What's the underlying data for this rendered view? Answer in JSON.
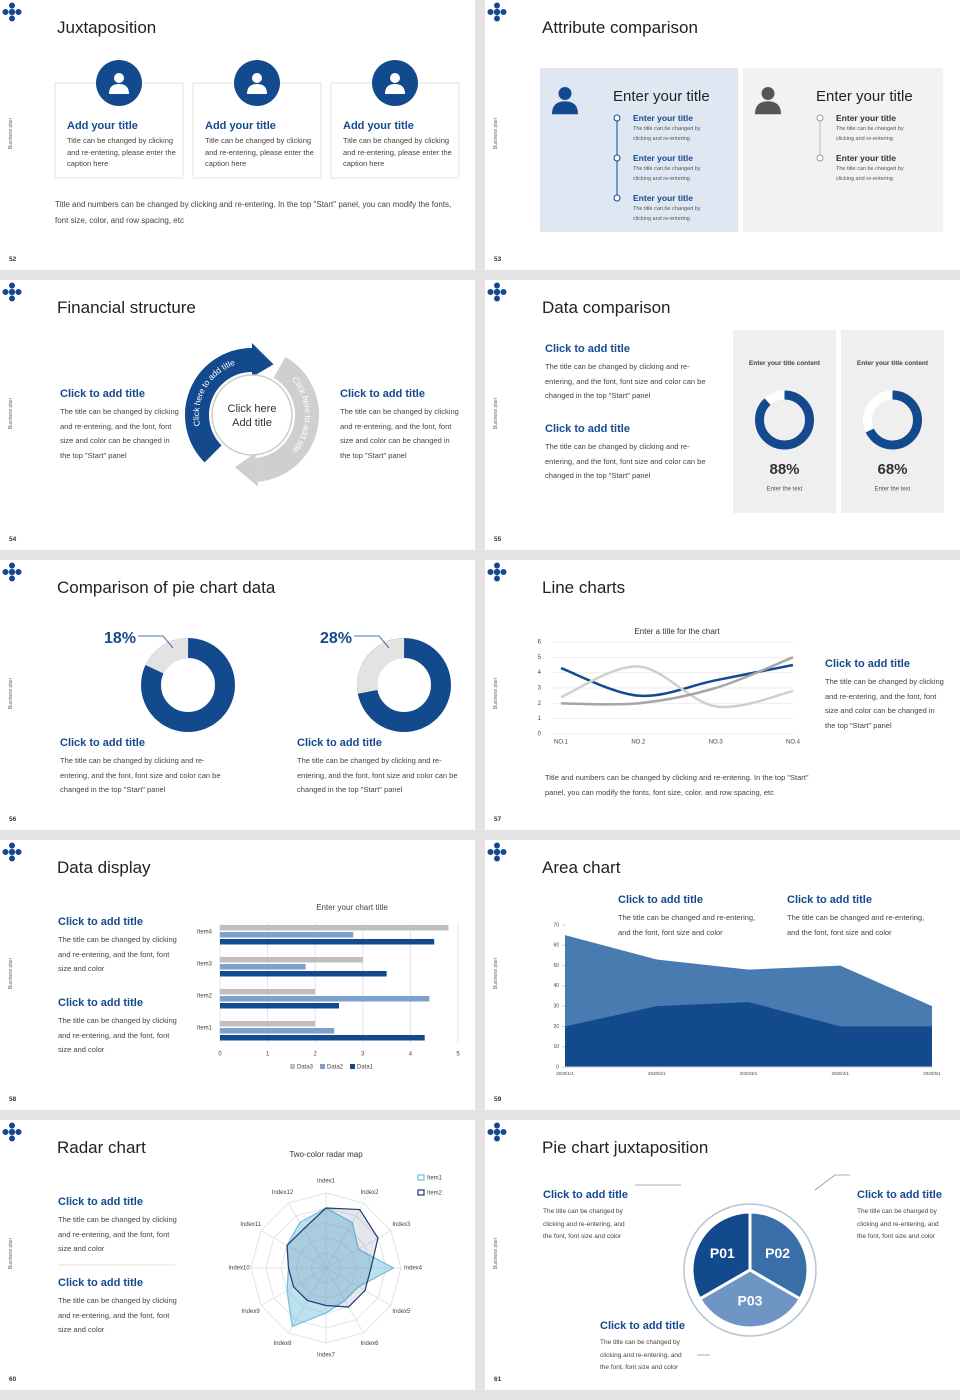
{
  "slides": [
    {
      "number": 52,
      "brand": "Business plan",
      "title": "Juxtaposition",
      "cards": [
        {
          "title": "Add your title",
          "text": "Title can be changed by clicking and re-entering, please enter the caption here"
        },
        {
          "title": "Add your title",
          "text": "Title can be changed by clicking and re-entering, please enter the caption here"
        },
        {
          "title": "Add your title",
          "text": "Title can be changed by clicking and re-entering, please enter the caption here"
        }
      ],
      "note": "Title and numbers can be changed by clicking and re-entering. In the top \"Start\" panel, you can modify the fonts, font size, color, and row spacing, etc"
    },
    {
      "number": 53,
      "brand": "Business plan",
      "title": "Attribute comparison",
      "panels": [
        {
          "title": "Enter your title",
          "items": [
            {
              "title": "Enter your title",
              "text": "The title can be changed by clicking and re-entering"
            },
            {
              "title": "Enter your title",
              "text": "The title can be changed by clicking and re-entering"
            },
            {
              "title": "Enter your title",
              "text": "The title can be changed by clicking and re-entering"
            }
          ]
        },
        {
          "title": "Enter your title",
          "items": [
            {
              "title": "Enter your title",
              "text": "The title can be changed by clicking and re-entering"
            },
            {
              "title": "Enter your title",
              "text": "The title can be changed by clicking and re-entering"
            }
          ]
        }
      ]
    },
    {
      "number": 54,
      "brand": "Business plan",
      "title": "Financial structure",
      "blocks": [
        {
          "title": "Click to add title",
          "text": "The title can be changed by clicking and re-entering, and the font, font size and color can be changed in the top \"Start\" panel"
        },
        {
          "title": "Click to add title",
          "text": "The title can be changed by clicking and re-entering, and the font, font size and color can be changed in the top \"Start\" panel"
        }
      ],
      "center": [
        "Click here",
        "Add title"
      ],
      "arc_labels": [
        "Click here to add title",
        "Click here to add title"
      ]
    },
    {
      "number": 55,
      "brand": "Business plan",
      "title": "Data comparison",
      "blocks": [
        {
          "title": "Click to add title",
          "text": "The title can be changed by clicking and re-entering, and the font, font size and color can be changed in the top \"Start\" panel"
        },
        {
          "title": "Click to add title",
          "text": "The title can be changed by clicking and re-entering, and the font, font size and color can be changed in the top \"Start\" panel"
        }
      ],
      "gauges": [
        {
          "title": "Enter your title content",
          "value": 88,
          "value_label": "88%",
          "caption": "Enter the text"
        },
        {
          "title": "Enter your title content",
          "value": 68,
          "value_label": "68%",
          "caption": "Enter the text"
        }
      ]
    },
    {
      "number": 56,
      "brand": "Business plan",
      "title": "Comparison of pie chart data",
      "donuts": [
        {
          "value": 18,
          "value_label": "18%"
        },
        {
          "value": 28,
          "value_label": "28%"
        }
      ],
      "blocks": [
        {
          "title": "Click to add title",
          "text": "The title can be changed by clicking and re-entering, and the font, font size and color can be changed in the top \"Start\" panel"
        },
        {
          "title": "Click to add title",
          "text": "The title can be changed by clicking and re-entering, and the font, font size and color can be changed in the top \"Start\" panel"
        }
      ]
    },
    {
      "number": 57,
      "brand": "Business plan",
      "title": "Line charts",
      "chart": {
        "type": "line",
        "title": "Enter a title for the chart",
        "categories": [
          "NO.1",
          "NO.2",
          "NO.3",
          "NO.4"
        ],
        "ylim": [
          0,
          6
        ],
        "yticks": [
          0,
          1,
          2,
          3,
          4,
          5,
          6
        ],
        "grid": true,
        "series": [
          {
            "color": "#134a8e",
            "values": [
              4.3,
              2.5,
              3.5,
              4.5
            ]
          },
          {
            "color": "#d0d0d0",
            "values": [
              2.4,
              4.4,
              1.8,
              2.8
            ]
          },
          {
            "color": "#a6a6a6",
            "values": [
              2.0,
              2.0,
              3.0,
              5.0
            ]
          }
        ]
      },
      "block": {
        "title": "Click to add title",
        "text": "The title can be changed by clicking and re-entering, and the font, font size and color can be changed in the top \"Start\" panel"
      },
      "note": "Title and numbers can be changed by clicking and re-entering. In the top \"Start\" panel, you can modify the fonts, font size, color, and row spacing, etc"
    },
    {
      "number": 58,
      "brand": "Business plan",
      "title": "Data display",
      "blocks": [
        {
          "title": "Click to add title",
          "text": "The title can be changed by clicking and re-entering, and the font, font size and color"
        },
        {
          "title": "Click to add title",
          "text": "The title can be changed by clicking and re-entering, and the font, font size and color"
        }
      ],
      "chart": {
        "type": "bar",
        "orientation": "horizontal",
        "title": "Enter your chart title",
        "categories": [
          "Item1",
          "Item2",
          "Item3",
          "Item4"
        ],
        "xlim": [
          0,
          5
        ],
        "xticks": [
          0,
          1,
          2,
          3,
          4,
          5
        ],
        "grid": true,
        "series": [
          {
            "name": "Data3",
            "color": "#bfbfbf",
            "values": [
              2,
              2,
              3,
              4.8
            ]
          },
          {
            "name": "Data2",
            "color": "#7f9fcc",
            "values": [
              2.4,
              4.4,
              1.8,
              2.8
            ]
          },
          {
            "name": "Data1",
            "color": "#134a8e",
            "values": [
              4.3,
              2.5,
              3.5,
              4.5
            ]
          }
        ]
      }
    },
    {
      "number": 59,
      "brand": "Business plan",
      "title": "Area chart",
      "blocks": [
        {
          "title": "Click to add title",
          "text": "The title can be changed and re-entering, and the font, font size and color"
        },
        {
          "title": "Click to add title",
          "text": "The title can be changed and re-entering, and the font, font size and color"
        }
      ],
      "chart": {
        "type": "area",
        "categories": [
          "2020/1/1",
          "2020/2/1",
          "2020/3/1",
          "2020/4/1",
          "2020/5/1"
        ],
        "ylim": [
          0,
          70
        ],
        "yticks": [
          0,
          10,
          20,
          30,
          40,
          50,
          60,
          70
        ],
        "series": [
          {
            "color": "#4a7bb0",
            "values": [
              65,
              53,
              48,
              50,
              30
            ]
          },
          {
            "color": "#134a8e",
            "values": [
              20,
              30,
              32,
              20,
              20
            ]
          }
        ]
      }
    },
    {
      "number": 60,
      "brand": "Business plan",
      "title": "Radar chart",
      "blocks": [
        {
          "title": "Click to add title",
          "text": "The title can be changed by clicking and re-entering, and the font, font size and color"
        },
        {
          "title": "Click to add title",
          "text": "The title can be changed by clicking and re-entering, and the font, font size and color"
        }
      ],
      "chart": {
        "type": "radar",
        "title": "Two-color radar map",
        "categories": [
          "Index1",
          "Index2",
          "Index3",
          "Index4",
          "Index5",
          "Index6",
          "Index7",
          "Index8",
          "Index9",
          "Index10",
          "Index11",
          "Index12"
        ],
        "rlim": [
          0,
          10
        ],
        "series": [
          {
            "name": "Item1",
            "color": "#6fbcdc",
            "values": [
              8,
              7,
              5,
              9,
              5,
              5,
              6,
              9,
              6,
              5,
              6,
              7
            ]
          },
          {
            "name": "Item2",
            "color": "#1f3a6e",
            "values": [
              8,
              9,
              8,
              6,
              6,
              6,
              5,
              5,
              5,
              5,
              6,
              6
            ]
          }
        ]
      }
    },
    {
      "number": 61,
      "brand": "Business plan",
      "title": "Pie chart juxtaposition",
      "segments": [
        "P01",
        "P02",
        "P03"
      ],
      "blocks": [
        {
          "title": "Click to add title",
          "text": "The title can be changed by clicking and re-entering, and the font, font size and color"
        },
        {
          "title": "Click to add title",
          "text": "The title can be changed by clicking and re-entering, and the font, font size and color"
        },
        {
          "title": "Click to add title",
          "text": "The title can be changed by clicking and re-entering, and the font, font size and color"
        }
      ]
    }
  ]
}
